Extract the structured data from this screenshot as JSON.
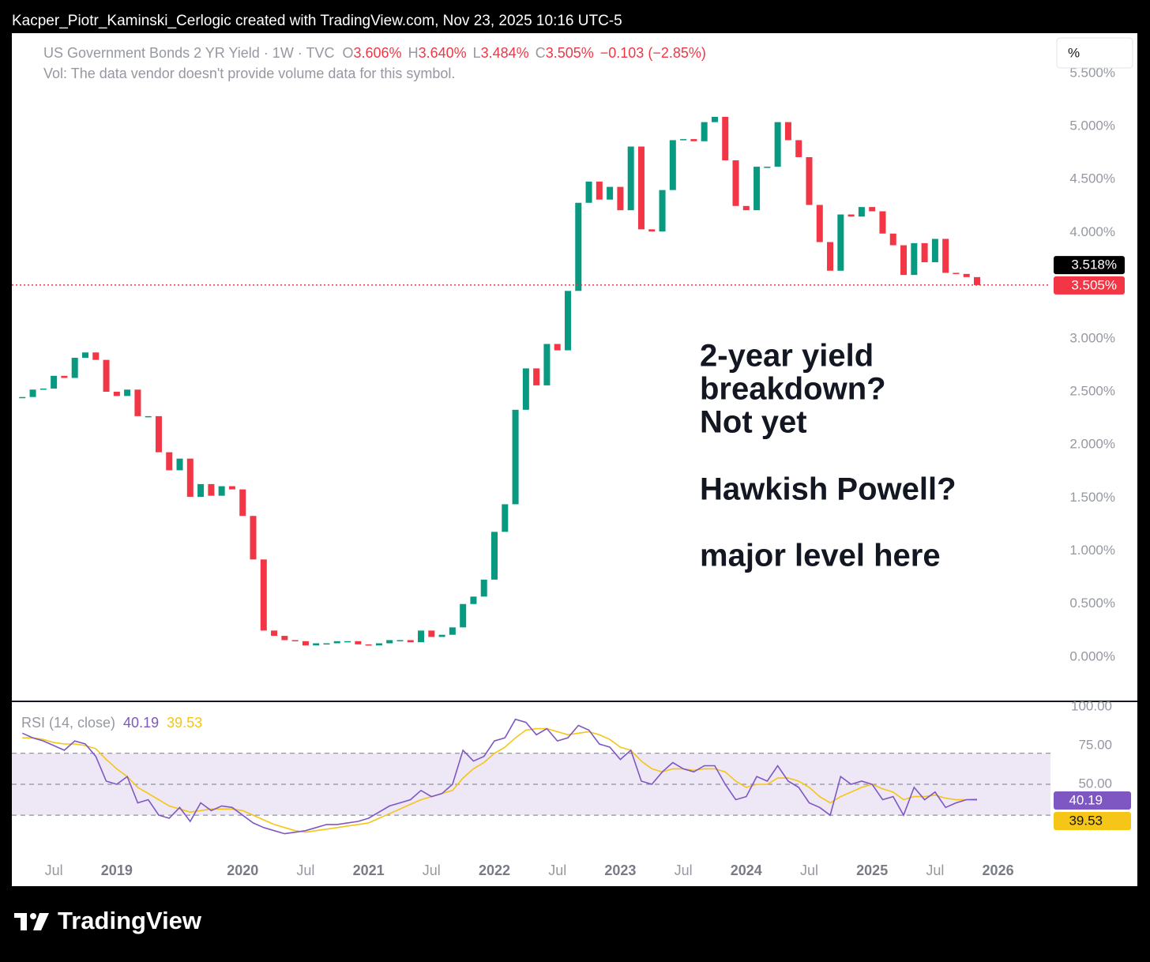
{
  "header": {
    "caption": "Kacper_Piotr_Kaminski_Cerlogic created with TradingView.com, Nov 23, 2025 10:16 UTC-5"
  },
  "footer": {
    "brand": "TradingView"
  },
  "chart_data": [
    {
      "type": "candlestick",
      "title": "US Government Bonds 2 YR Yield · 1W · TVC",
      "subtitle": "Vol: The data vendor doesn't provide volume data for this symbol.",
      "ohlc_legend": [
        {
          "key": "O",
          "label": "3.606%"
        },
        {
          "key": "H",
          "label": "3.640%"
        },
        {
          "key": "L",
          "label": "3.484%"
        },
        {
          "key": "C",
          "label": "3.505%"
        }
      ],
      "change_label": "−0.103 (−2.85%)",
      "unit_button": "%",
      "up_color": "#089981",
      "down_color": "#f23645",
      "x": [
        "2018-04",
        "2018-05",
        "2018-06",
        "2018-07",
        "2018-08",
        "2018-09",
        "2018-10",
        "2018-11",
        "2018-12",
        "2019-01",
        "2019-02",
        "2019-03",
        "2019-04",
        "2019-05",
        "2019-06",
        "2019-07",
        "2019-08",
        "2019-09",
        "2019-10",
        "2019-11",
        "2019-12",
        "2020-01",
        "2020-02",
        "2020-03",
        "2020-04",
        "2020-05",
        "2020-06",
        "2020-07",
        "2020-08",
        "2020-09",
        "2020-10",
        "2020-11",
        "2020-12",
        "2021-01",
        "2021-02",
        "2021-03",
        "2021-04",
        "2021-05",
        "2021-06",
        "2021-07",
        "2021-08",
        "2021-09",
        "2021-10",
        "2021-11",
        "2021-12",
        "2022-01",
        "2022-02",
        "2022-03",
        "2022-04",
        "2022-05",
        "2022-06",
        "2022-07",
        "2022-08",
        "2022-09",
        "2022-10",
        "2022-11",
        "2022-12",
        "2023-01",
        "2023-02",
        "2023-03",
        "2023-04",
        "2023-05",
        "2023-06",
        "2023-07",
        "2023-08",
        "2023-09",
        "2023-10",
        "2023-11",
        "2023-12",
        "2024-01",
        "2024-02",
        "2024-03",
        "2024-04",
        "2024-05",
        "2024-06",
        "2024-07",
        "2024-08",
        "2024-09",
        "2024-10",
        "2024-11",
        "2024-12",
        "2025-01",
        "2025-02",
        "2025-03",
        "2025-04",
        "2025-05",
        "2025-06",
        "2025-07",
        "2025-08",
        "2025-09",
        "2025-10",
        "2025-11"
      ],
      "values": [
        2.45,
        2.52,
        2.53,
        2.65,
        2.63,
        2.82,
        2.87,
        2.8,
        2.5,
        2.46,
        2.52,
        2.27,
        2.27,
        1.93,
        1.76,
        1.87,
        1.51,
        1.63,
        1.52,
        1.61,
        1.58,
        1.33,
        0.92,
        0.25,
        0.2,
        0.16,
        0.15,
        0.11,
        0.13,
        0.13,
        0.15,
        0.15,
        0.12,
        0.11,
        0.13,
        0.16,
        0.16,
        0.14,
        0.25,
        0.19,
        0.21,
        0.28,
        0.5,
        0.57,
        0.73,
        1.18,
        1.44,
        2.33,
        2.72,
        2.56,
        2.95,
        2.89,
        3.45,
        4.28,
        4.48,
        4.31,
        4.43,
        4.21,
        4.81,
        4.03,
        4.01,
        4.4,
        4.87,
        4.88,
        4.86,
        5.04,
        5.09,
        4.68,
        4.25,
        4.21,
        4.62,
        4.62,
        5.04,
        4.87,
        4.71,
        4.26,
        3.91,
        3.64,
        4.17,
        4.15,
        4.24,
        4.2,
        3.99,
        3.88,
        3.6,
        3.9,
        3.72,
        3.94,
        3.62,
        3.61,
        3.58,
        3.505
      ],
      "xlim": [
        "2018-03",
        "2026-06"
      ],
      "xticks": [
        {
          "value": "2018-07",
          "label": "Jul"
        },
        {
          "value": "2019-01",
          "label": "2019"
        },
        {
          "value": "2020-01",
          "label": "2020"
        },
        {
          "value": "2020-07",
          "label": "Jul"
        },
        {
          "value": "2021-01",
          "label": "2021"
        },
        {
          "value": "2021-07",
          "label": "Jul"
        },
        {
          "value": "2022-01",
          "label": "2022"
        },
        {
          "value": "2022-07",
          "label": "Jul"
        },
        {
          "value": "2023-01",
          "label": "2023"
        },
        {
          "value": "2023-07",
          "label": "Jul"
        },
        {
          "value": "2024-01",
          "label": "2024"
        },
        {
          "value": "2024-07",
          "label": "Jul"
        },
        {
          "value": "2025-01",
          "label": "2025"
        },
        {
          "value": "2025-07",
          "label": "Jul"
        },
        {
          "value": "2026-01",
          "label": "2026"
        }
      ],
      "ylim": [
        -0.417,
        5.878
      ],
      "yticks": [
        {
          "value": 0,
          "label": "0.000%"
        },
        {
          "value": 0.5,
          "label": "0.500%"
        },
        {
          "value": 1,
          "label": "1.000%"
        },
        {
          "value": 1.5,
          "label": "1.500%"
        },
        {
          "value": 2,
          "label": "2.000%"
        },
        {
          "value": 2.5,
          "label": "2.500%"
        },
        {
          "value": 3,
          "label": "3.000%"
        },
        {
          "value": 3.5,
          "label": "3.500%"
        },
        {
          "value": 4,
          "label": "4.000%"
        },
        {
          "value": 4.5,
          "label": "4.500%"
        },
        {
          "value": 5,
          "label": "5.000%"
        },
        {
          "value": 5.5,
          "label": "5.500%"
        }
      ],
      "marker_price": {
        "value": 3.518,
        "label": "3.518%"
      },
      "last_price": {
        "value": 3.505,
        "label": "3.505%"
      },
      "annotation": [
        "2-year yield",
        "breakdown?",
        "Not yet",
        "Hawkish Powell?",
        "major level here"
      ]
    },
    {
      "type": "line",
      "title": "RSI (14, close)",
      "series": [
        {
          "color": "#7e57c2",
          "values": [
            83,
            80,
            78,
            75,
            72,
            78,
            76,
            68,
            52,
            50,
            55,
            38,
            40,
            30,
            28,
            35,
            26,
            38,
            33,
            36,
            35,
            30,
            25,
            22,
            20,
            18,
            19,
            20,
            22,
            24,
            24,
            25,
            26,
            28,
            32,
            36,
            38,
            40,
            46,
            42,
            44,
            50,
            72,
            65,
            68,
            78,
            80,
            92,
            90,
            82,
            86,
            78,
            80,
            88,
            85,
            76,
            74,
            66,
            72,
            52,
            50,
            58,
            64,
            60,
            58,
            62,
            62,
            50,
            40,
            42,
            55,
            52,
            62,
            52,
            48,
            38,
            35,
            30,
            55,
            50,
            52,
            50,
            40,
            42,
            30,
            48,
            40,
            45,
            35,
            38,
            40,
            40.19
          ]
        },
        {
          "color": "#f5c518",
          "values": [
            80,
            80,
            79,
            77,
            76,
            76,
            75,
            73,
            66,
            60,
            55,
            48,
            44,
            40,
            36,
            34,
            32,
            33,
            34,
            34,
            34,
            33,
            30,
            27,
            24,
            22,
            20,
            19,
            20,
            21,
            22,
            23,
            24,
            25,
            28,
            31,
            34,
            37,
            40,
            42,
            44,
            46,
            54,
            60,
            64,
            70,
            74,
            80,
            85,
            86,
            86,
            84,
            82,
            83,
            84,
            82,
            79,
            74,
            72,
            65,
            60,
            58,
            60,
            60,
            59,
            60,
            60,
            58,
            52,
            48,
            50,
            50,
            54,
            54,
            52,
            48,
            42,
            38,
            42,
            45,
            48,
            50,
            47,
            45,
            40,
            42,
            42,
            43,
            41,
            40,
            40,
            39.53
          ]
        }
      ],
      "ylim": [
        3,
        103.6
      ],
      "yticks": [
        {
          "value": 100,
          "label": "100.00"
        },
        {
          "value": 75,
          "label": "75.00"
        },
        {
          "value": 50,
          "label": "50.00"
        }
      ],
      "band": [
        30,
        70
      ],
      "levels": [
        70,
        50,
        30
      ]
    }
  ]
}
